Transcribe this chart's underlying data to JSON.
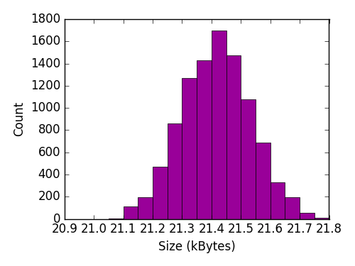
{
  "bin_left_edges": [
    21.05,
    21.1,
    21.15,
    21.2,
    21.25,
    21.3,
    21.35,
    21.4,
    21.45,
    21.5,
    21.55,
    21.6,
    21.65,
    21.7,
    21.75
  ],
  "counts": [
    5,
    110,
    195,
    470,
    860,
    1270,
    1430,
    1700,
    1475,
    1080,
    690,
    330,
    195,
    55,
    10
  ],
  "bin_width": 0.05,
  "bar_color": "#990099",
  "edge_color": "black",
  "xlabel": "Size (kBytes)",
  "ylabel": "Count",
  "xlim": [
    20.9,
    21.8
  ],
  "ylim": [
    0,
    1800
  ],
  "xticks": [
    20.9,
    21.0,
    21.1,
    21.2,
    21.3,
    21.4,
    21.5,
    21.6,
    21.7,
    21.8
  ],
  "yticks": [
    0,
    200,
    400,
    600,
    800,
    1000,
    1200,
    1400,
    1600,
    1800
  ],
  "figsize": [
    5.0,
    3.75
  ],
  "dpi": 100
}
